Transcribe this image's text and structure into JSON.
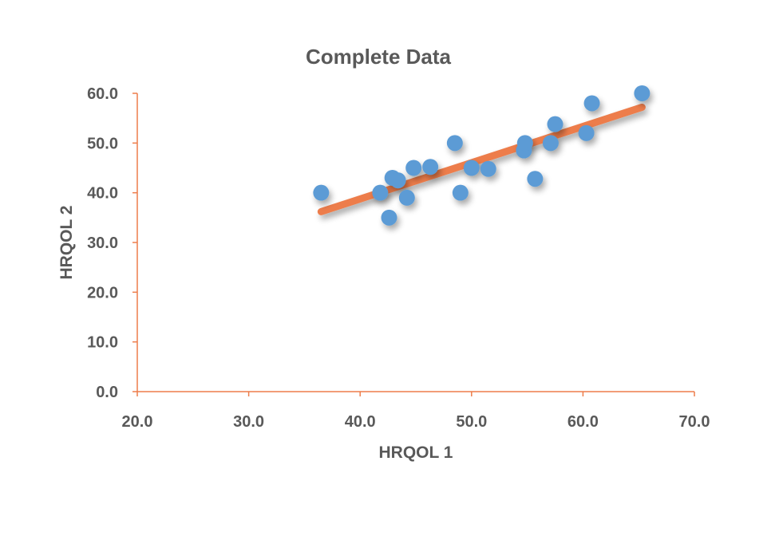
{
  "chart_data": {
    "type": "scatter",
    "title": "Complete Data",
    "xlabel": "HRQOL 1",
    "ylabel": "HRQOL 2",
    "xlim": [
      20,
      70
    ],
    "ylim": [
      0,
      60
    ],
    "x_ticks": [
      "20.0",
      "30.0",
      "40.0",
      "50.0",
      "60.0",
      "70.0"
    ],
    "y_ticks": [
      "0.0",
      "10.0",
      "20.0",
      "30.0",
      "40.0",
      "50.0",
      "60.0"
    ],
    "grid": false,
    "legend": "none",
    "series": [
      {
        "color": "#5b9bd5",
        "points": [
          [
            36.5,
            40.0
          ],
          [
            41.8,
            40.0
          ],
          [
            42.6,
            35.0
          ],
          [
            42.9,
            43.0
          ],
          [
            43.4,
            42.5
          ],
          [
            44.2,
            39.0
          ],
          [
            44.8,
            45.0
          ],
          [
            46.3,
            45.2
          ],
          [
            48.5,
            50.0
          ],
          [
            49.0,
            40.0
          ],
          [
            50.0,
            45.0
          ],
          [
            51.5,
            44.8
          ],
          [
            54.7,
            48.5
          ],
          [
            54.8,
            50.0
          ],
          [
            55.7,
            42.8
          ],
          [
            57.1,
            50.0
          ],
          [
            57.5,
            53.8
          ],
          [
            60.3,
            52.0
          ],
          [
            60.8,
            58.0
          ],
          [
            65.3,
            60.0
          ]
        ]
      }
    ],
    "trendline": {
      "color": "#ed7d4b",
      "x": [
        36.5,
        65.3
      ],
      "y": [
        36.2,
        57.2
      ]
    },
    "axis_color": "#ed7d4b"
  }
}
